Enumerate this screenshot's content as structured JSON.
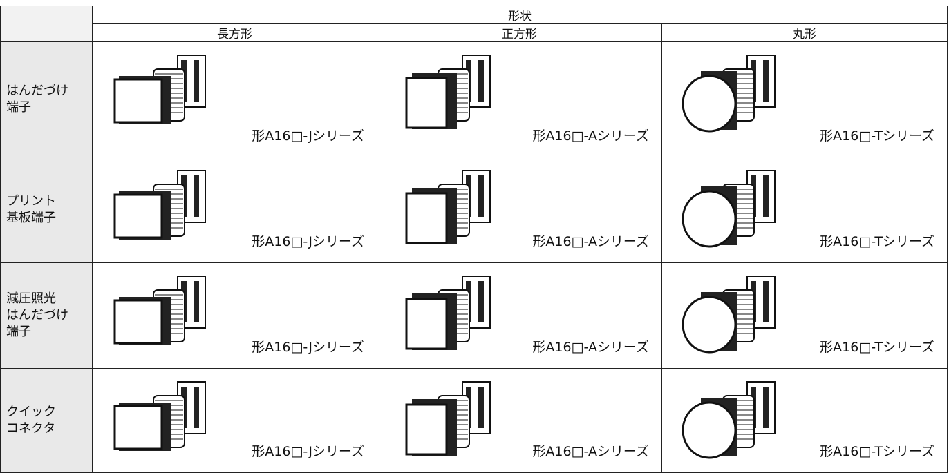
{
  "table": {
    "header": {
      "group": "形状",
      "columns": [
        "長方形",
        "正方形",
        "丸形"
      ]
    },
    "rows": [
      {
        "label": [
          "はんだづけ",
          "端子"
        ],
        "cells": [
          "形A16□-Jシリーズ",
          "形A16□-Aシリーズ",
          "形A16□-Tシリーズ"
        ]
      },
      {
        "label": [
          "プリント",
          "基板端子"
        ],
        "cells": [
          "形A16□-Jシリーズ",
          "形A16□-Aシリーズ",
          "形A16□-Tシリーズ"
        ]
      },
      {
        "label": [
          "減圧照光",
          "はんだづけ",
          "端子"
        ],
        "cells": [
          "形A16□-Jシリーズ",
          "形A16□-Aシリーズ",
          "形A16□-Tシリーズ"
        ]
      },
      {
        "label": [
          "クイック",
          "コネクタ"
        ],
        "cells": [
          "形A16□-Jシリーズ",
          "形A16□-Aシリーズ",
          "形A16□-Tシリーズ"
        ]
      }
    ]
  }
}
